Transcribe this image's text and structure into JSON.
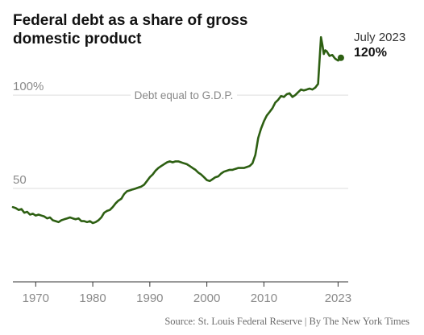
{
  "chart_data": {
    "type": "line",
    "title": "Federal debt as a share of gross domestic product",
    "source": "Source: St. Louis Federal Reserve | By The New York Times",
    "y_ticks": [
      {
        "value": 100,
        "label": "100%"
      },
      {
        "value": 50,
        "label": "50"
      }
    ],
    "x_ticks": [
      {
        "value": 1970,
        "label": "1970"
      },
      {
        "value": 1980,
        "label": "1980"
      },
      {
        "value": 1990,
        "label": "1990"
      },
      {
        "value": 2000,
        "label": "2000"
      },
      {
        "value": 2010,
        "label": "2010"
      },
      {
        "value": 2023,
        "label": "2023"
      }
    ],
    "xlim": [
      1966,
      2024.5
    ],
    "ylim": [
      0,
      138
    ],
    "reference_line": {
      "value": 100,
      "label": "Debt equal to G.D.P."
    },
    "annotation": {
      "date": "July 2023",
      "value_label": "120%",
      "x": 2023.5,
      "y": 120
    },
    "colors": {
      "line": "#2d5f12",
      "grid": "#dddddd",
      "axis": "#333333"
    },
    "series": [
      {
        "x": [
          1966,
          1966.5,
          1967,
          1967.5,
          1968,
          1968.5,
          1969,
          1969.5,
          1970,
          1970.5,
          1971,
          1971.5,
          1972,
          1972.5,
          1973,
          1973.5,
          1974,
          1974.5,
          1975,
          1975.5,
          1976,
          1976.5,
          1977,
          1977.5,
          1978,
          1978.5,
          1979,
          1979.5,
          1980,
          1980.5,
          1981,
          1981.5,
          1982,
          1982.5,
          1983,
          1983.5,
          1984,
          1984.5,
          1985,
          1985.5,
          1986,
          1986.5,
          1987,
          1987.5,
          1988,
          1988.5,
          1989,
          1989.5,
          1990,
          1990.5,
          1991,
          1991.5,
          1992,
          1992.5,
          1993,
          1993.5,
          1994,
          1994.5,
          1995,
          1995.5,
          1996,
          1996.5,
          1997,
          1997.5,
          1998,
          1998.5,
          1999,
          1999.5,
          2000,
          2000.5,
          2001,
          2001.5,
          2002,
          2002.5,
          2003,
          2003.5,
          2004,
          2004.5,
          2005,
          2005.5,
          2006,
          2006.5,
          2007,
          2007.5,
          2008,
          2008.5,
          2009,
          2009.5,
          2010,
          2010.5,
          2011,
          2011.5,
          2012,
          2012.5,
          2013,
          2013.5,
          2014,
          2014.5,
          2015,
          2015.5,
          2016,
          2016.5,
          2017,
          2017.5,
          2018,
          2018.5,
          2019,
          2019.5,
          2020,
          2020.25,
          2020.5,
          2020.75,
          2021,
          2021.5,
          2022,
          2022.5,
          2023,
          2023.5
        ],
        "values": [
          40,
          39.5,
          38.5,
          39,
          37,
          37.5,
          36,
          36.5,
          35.5,
          36,
          35.5,
          35,
          34,
          34.5,
          33,
          32.5,
          32,
          33,
          33.5,
          34,
          34.5,
          34,
          33.5,
          34,
          32.5,
          32.5,
          32,
          32.5,
          31.5,
          32,
          33,
          34.5,
          37,
          38,
          38.5,
          40,
          42,
          43.5,
          44.5,
          47,
          48.5,
          49,
          49.5,
          50,
          50.5,
          51,
          52,
          54,
          56,
          57.5,
          59.5,
          61,
          62,
          63,
          64,
          64.5,
          64,
          64.5,
          64.5,
          64,
          63.5,
          63,
          62,
          61,
          60,
          58.5,
          57.5,
          56,
          54.5,
          54,
          55,
          56,
          56.5,
          58,
          59,
          59.5,
          60,
          60,
          60.5,
          61,
          61,
          61,
          61.5,
          62,
          63.5,
          68,
          77,
          82,
          86,
          89,
          91,
          93,
          96,
          97.5,
          99.5,
          99,
          100.5,
          101,
          99,
          100,
          101.5,
          103,
          102.5,
          103,
          103.5,
          103,
          104,
          106,
          131,
          127,
          122,
          124,
          123.5,
          121,
          121.5,
          119.5,
          118.5,
          120
        ]
      }
    ]
  }
}
